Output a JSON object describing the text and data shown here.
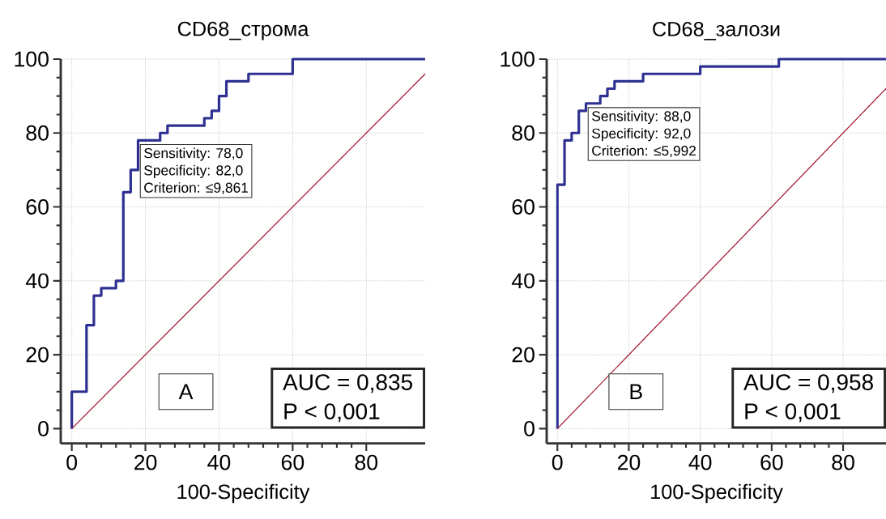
{
  "chart_data": [
    {
      "type": "step",
      "title": "CD68_строма",
      "xlabel": "100-Specificity",
      "series": [
        {
          "color": "#2e3192",
          "x": [
            0,
            4,
            6,
            8,
            12,
            14,
            16,
            18,
            24,
            26,
            36,
            38,
            40,
            42,
            48,
            60,
            96
          ],
          "values": [
            0,
            10,
            28,
            36,
            38,
            40,
            64,
            70,
            78,
            80,
            82,
            84,
            86,
            90,
            94,
            96,
            100
          ]
        },
        {
          "type": "line",
          "color": "#a0102a",
          "x": [
            0,
            96
          ],
          "values": [
            0,
            96
          ]
        }
      ],
      "xlim": [
        -3,
        96
      ],
      "ylim": [
        -4,
        100
      ],
      "xticks": [
        0,
        20,
        40,
        60,
        80
      ],
      "yticks": [
        0,
        20,
        40,
        60,
        80,
        100
      ],
      "grid": true,
      "annotations": [
        "Sensitivity: 78,0",
        "Specificity: 82,0",
        "Criterion: ≤9,861",
        "A",
        "AUC = 0,835",
        "P < 0,001"
      ]
    },
    {
      "type": "step",
      "title": "CD68_залози",
      "xlabel": "100-Specificity",
      "series": [
        {
          "color": "#2e3192",
          "x": [
            0,
            2,
            4,
            6,
            8,
            12,
            14,
            16,
            24,
            40,
            62,
            92
          ],
          "values": [
            0,
            66,
            78,
            80,
            86,
            88,
            90,
            92,
            94,
            96,
            98,
            100
          ]
        },
        {
          "type": "line",
          "color": "#a0102a",
          "x": [
            0,
            92
          ],
          "values": [
            0,
            92
          ]
        }
      ],
      "xlim": [
        -3,
        92
      ],
      "ylim": [
        -4,
        100
      ],
      "xticks": [
        0,
        20,
        40,
        60,
        80
      ],
      "yticks": [
        0,
        20,
        40,
        60,
        80,
        100
      ],
      "grid": true,
      "annotations": [
        "Sensitivity: 88,0",
        "Specificity: 92,0",
        "Criterion: ≤5,992",
        "B",
        "AUC = 0,958",
        "P < 0,001"
      ]
    }
  ]
}
